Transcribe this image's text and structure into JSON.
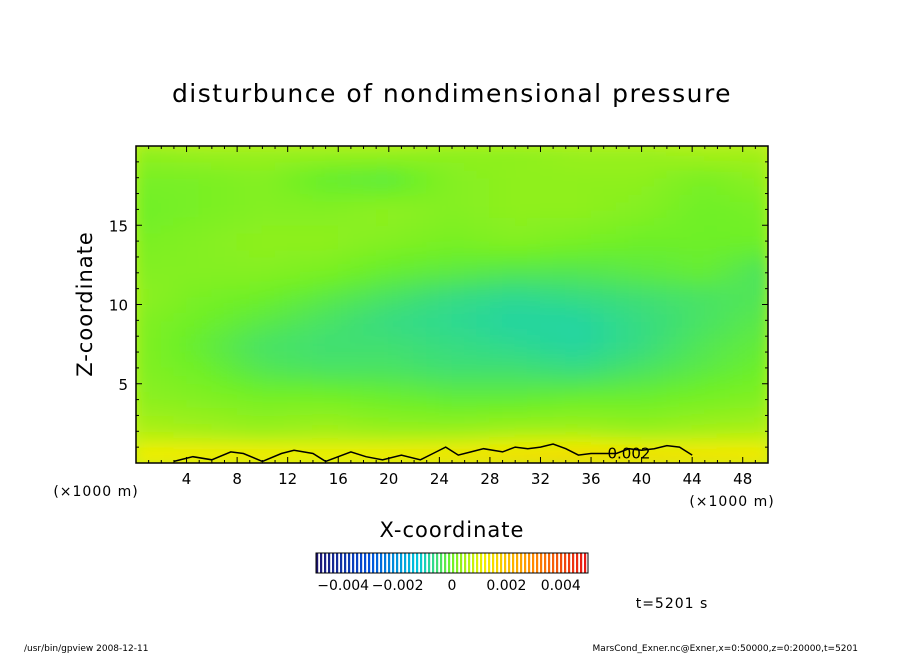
{
  "chart_data": {
    "type": "heatmap",
    "title": "disturbunce of nondimensional pressure",
    "xlabel": "X-coordinate",
    "ylabel": "Z-coordinate",
    "x_unit": "(×1000 m)",
    "z_unit": "(×1000 m)",
    "xlim": [
      0,
      50
    ],
    "ylim": [
      0,
      20
    ],
    "x_ticks": [
      4,
      8,
      12,
      16,
      20,
      24,
      28,
      32,
      36,
      40,
      44,
      48
    ],
    "y_ticks": [
      5,
      10,
      15
    ],
    "contour": {
      "level": 0.002,
      "label": "0.002",
      "points": [
        [
          3,
          0.1
        ],
        [
          4.5,
          0.4
        ],
        [
          6,
          0.2
        ],
        [
          7.5,
          0.7
        ],
        [
          8.5,
          0.6
        ],
        [
          10,
          0.1
        ],
        [
          11.5,
          0.6
        ],
        [
          12.5,
          0.8
        ],
        [
          14,
          0.6
        ],
        [
          15,
          0.1
        ],
        [
          17,
          0.7
        ],
        [
          18.2,
          0.4
        ],
        [
          19.5,
          0.2
        ],
        [
          21,
          0.5
        ],
        [
          22.5,
          0.2
        ],
        [
          23.5,
          0.6
        ],
        [
          24.5,
          1.0
        ],
        [
          25.5,
          0.5
        ],
        [
          26.5,
          0.7
        ],
        [
          27.5,
          0.9
        ],
        [
          29,
          0.7
        ],
        [
          30,
          1.0
        ],
        [
          31,
          0.9
        ],
        [
          32,
          1.0
        ],
        [
          33,
          1.2
        ],
        [
          34,
          0.9
        ],
        [
          35,
          0.5
        ],
        [
          36,
          0.6
        ],
        [
          37,
          0.6
        ],
        [
          38,
          0.6
        ],
        [
          39,
          0.9
        ],
        [
          40,
          0.8
        ],
        [
          41,
          0.9
        ],
        [
          42,
          1.1
        ],
        [
          43,
          1.0
        ],
        [
          44,
          0.5
        ]
      ]
    },
    "field": {
      "note": "smoothed disturbance field, values in [-0.004, 0.004]",
      "z_levels": [
        0.5,
        2,
        4,
        6,
        7.5,
        9,
        10.5,
        12,
        14,
        16,
        18,
        19.5
      ],
      "x_levels": [
        0,
        5,
        10,
        15,
        20,
        25,
        30,
        35,
        40,
        45,
        50
      ],
      "values": [
        [
          0.0013,
          0.0014,
          0.0014,
          0.0013,
          0.0014,
          0.0015,
          0.0016,
          0.0017,
          0.0016,
          0.0015,
          0.0014
        ],
        [
          0.0006,
          0.0005,
          0.0004,
          0.0005,
          0.0004,
          0.0004,
          0.0005,
          0.0005,
          0.0004,
          0.0005,
          0.0006
        ],
        [
          0.0003,
          0.0002,
          0.0001,
          0.0001,
          0.0,
          -0.0001,
          -0.0001,
          0.0,
          0.0,
          0.0001,
          0.0002
        ],
        [
          0.0002,
          0.0,
          -0.0003,
          -0.0004,
          -0.0004,
          -0.0005,
          -0.0005,
          -0.0006,
          -0.0004,
          -0.0002,
          0.0
        ],
        [
          0.0002,
          -0.0001,
          -0.0004,
          -0.0005,
          -0.0005,
          -0.0006,
          -0.0007,
          -0.0008,
          -0.0006,
          -0.0003,
          -0.0001
        ],
        [
          0.0002,
          0.0,
          -0.0002,
          -0.0004,
          -0.0006,
          -0.0007,
          -0.0008,
          -0.0008,
          -0.0006,
          -0.0004,
          -0.0002
        ],
        [
          0.0003,
          0.0001,
          0.0,
          -0.0002,
          -0.0004,
          -0.0006,
          -0.0007,
          -0.0006,
          -0.0005,
          -0.0004,
          -0.0003
        ],
        [
          0.0002,
          0.0002,
          0.0002,
          0.0001,
          -0.0001,
          -0.0002,
          -0.0003,
          -0.0003,
          -0.0002,
          -0.0001,
          -0.0004
        ],
        [
          0.0001,
          0.0002,
          0.0003,
          0.0003,
          0.0002,
          0.0001,
          0.0002,
          0.0001,
          0.0,
          0.0,
          0.0
        ],
        [
          0.0,
          0.0001,
          0.0002,
          0.0002,
          0.0003,
          0.0002,
          0.0003,
          0.0003,
          0.0002,
          0.0,
          0.0001
        ],
        [
          0.0001,
          0.0001,
          0.0002,
          -0.0001,
          -0.0002,
          0.0002,
          0.0003,
          0.0003,
          0.0003,
          0.0001,
          0.0003
        ],
        [
          0.0003,
          0.0004,
          0.0004,
          0.0004,
          0.0004,
          0.0003,
          0.0003,
          0.0004,
          0.0004,
          0.0005,
          0.0005
        ]
      ]
    },
    "colorbar": {
      "range": [
        -0.005,
        0.005
      ],
      "tick_labels": [
        "−0.004",
        "−0.002",
        "0",
        "0.002",
        "0.004"
      ],
      "tick_values": [
        -0.004,
        -0.002,
        0,
        0.002,
        0.004
      ]
    }
  },
  "time_label": "t=5201 s",
  "footer_left": "/usr/bin/gpview   2008-12-11",
  "footer_right": "MarsCond_Exner.nc@Exner,x=0:50000,z=0:20000,t=5201"
}
